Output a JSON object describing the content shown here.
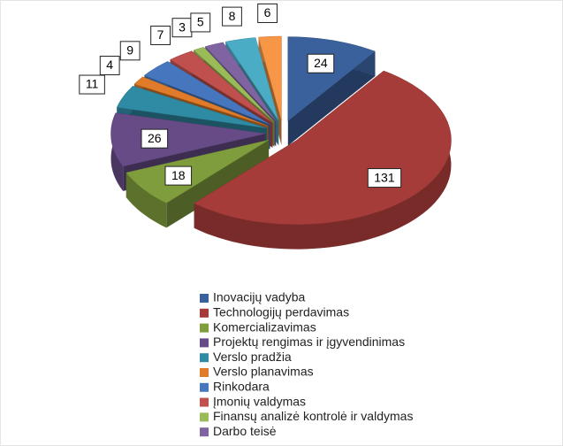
{
  "chart_data": {
    "type": "pie3d",
    "categories": [
      "Inovacijų vadyba",
      "Technologijų perdavimas",
      "Komercializavimas",
      "Projektų rengimas ir įgyvendinimas",
      "Verslo pradžia",
      "Verslo planavimas",
      "Rinkodara",
      "Įmonių valdymas",
      "Finansų analizė kontrolė ir valdymas",
      "Darbo teisė",
      null,
      null
    ],
    "values": [
      24,
      131,
      18,
      26,
      11,
      4,
      9,
      7,
      3,
      5,
      8,
      6
    ],
    "colors": [
      "#3b619c",
      "#a63c39",
      "#7f9d3d",
      "#664b87",
      "#2f8ba4",
      "#e07b2a",
      "#4677be",
      "#c0504d",
      "#9bbb59",
      "#8064a2",
      "#4bacc6",
      "#f79646"
    ]
  }
}
